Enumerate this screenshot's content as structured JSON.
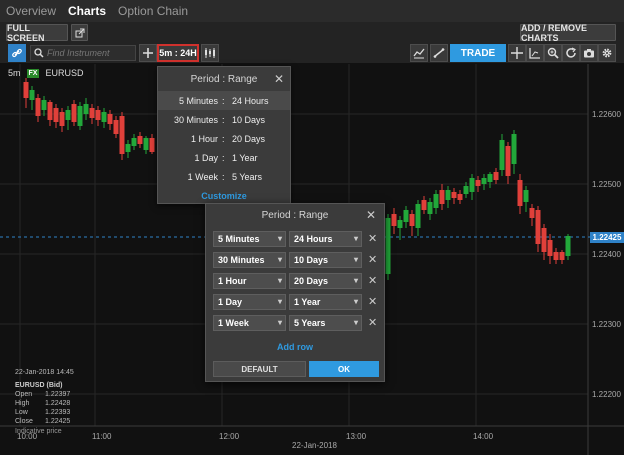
{
  "tabs": [
    {
      "label": "Overview"
    },
    {
      "label": "Charts"
    },
    {
      "label": "Option Chain"
    }
  ],
  "toolbar": {
    "full_screen_label": "FULL SCREEN",
    "add_remove_label": "ADD / REMOVE CHARTS",
    "search_placeholder": "Find Instrument",
    "period_label": "5m : 24H",
    "trade_label": "TRADE"
  },
  "chart": {
    "interval": "5m",
    "fx_badge": "FX",
    "instrument": "EURUSD",
    "price_labels": [
      "1.22600",
      "1.22500",
      "1.22400",
      "1.22300",
      "1.22200"
    ],
    "current_price": "1.22425",
    "time_labels": [
      "10:00",
      "11:00",
      "12:00",
      "13:00",
      "14:00"
    ],
    "date_label": "22-Jan-2018",
    "colors": {
      "up": "#22a83a",
      "down": "#e0403a",
      "price_line": "#2f82c8"
    }
  },
  "info": {
    "timestamp": "22-Jan-2018 14:45",
    "title": "EURUSD (Bid)",
    "rows": [
      {
        "label": "Open",
        "value": "1.22397"
      },
      {
        "label": "High",
        "value": "1.22428"
      },
      {
        "label": "Low",
        "value": "1.22393"
      },
      {
        "label": "Close",
        "value": "1.22425"
      }
    ],
    "indicative": "Indicative price"
  },
  "period_menu": {
    "title": "Period : Range",
    "items": [
      {
        "left": "5 Minutes",
        "sep": ":",
        "right": "24 Hours"
      },
      {
        "left": "30 Minutes",
        "sep": ":",
        "right": "10 Days"
      },
      {
        "left": "1 Hour",
        "sep": ":",
        "right": "20 Days"
      },
      {
        "left": "1 Day",
        "sep": ":",
        "right": "1 Year"
      },
      {
        "left": "1 Week",
        "sep": ":",
        "right": "5 Years"
      }
    ],
    "customize": "Customize"
  },
  "custom_dialog": {
    "title": "Period : Range",
    "rows": [
      {
        "period": "5 Minutes",
        "range": "24 Hours"
      },
      {
        "period": "30 Minutes",
        "range": "10 Days"
      },
      {
        "period": "1 Hour",
        "range": "20 Days"
      },
      {
        "period": "1 Day",
        "range": "1 Year"
      },
      {
        "period": "1 Week",
        "range": "5 Years"
      }
    ],
    "add_row": "Add row",
    "default_label": "DEFAULT",
    "ok_label": "OK"
  }
}
